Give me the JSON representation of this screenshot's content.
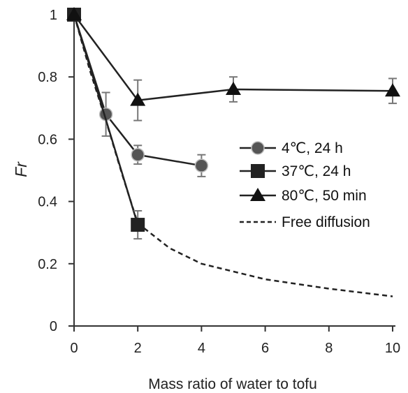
{
  "chart_data": {
    "type": "line",
    "xlabel": "Mass ratio of water to tofu",
    "ylabel": "Fr",
    "xlim": [
      0,
      10
    ],
    "ylim": [
      0,
      1
    ],
    "xticks": [
      0,
      2,
      4,
      6,
      8,
      10
    ],
    "yticks": [
      0,
      0.2,
      0.4,
      0.6,
      0.8,
      1
    ],
    "ytick_labels": [
      "0",
      "0.2",
      "0.4",
      "0.6",
      "0.8",
      "1"
    ],
    "grid": false,
    "legend_position": "right",
    "series": [
      {
        "name": "4℃, 24 h",
        "marker": "circle",
        "marker_color": "#555555",
        "x": [
          0,
          1,
          2,
          4
        ],
        "y": [
          1.0,
          0.68,
          0.55,
          0.515
        ],
        "err": [
          0,
          0.07,
          0.03,
          0.035
        ]
      },
      {
        "name": "37℃, 24 h",
        "marker": "square",
        "marker_color": "#222222",
        "x": [
          0,
          2
        ],
        "y": [
          1.0,
          0.325
        ],
        "err": [
          0,
          0.045
        ]
      },
      {
        "name": "80℃, 50 min",
        "marker": "triangle",
        "marker_color": "#111111",
        "x": [
          0,
          2,
          5,
          10
        ],
        "y": [
          1.0,
          0.725,
          0.76,
          0.755
        ],
        "err": [
          0,
          0.065,
          0.04,
          0.04
        ]
      },
      {
        "name": "Free diffusion",
        "line_style": "dashed",
        "x": [
          0,
          0.5,
          1,
          1.5,
          2,
          3,
          4,
          6,
          8,
          10
        ],
        "y": [
          1.0,
          0.82,
          0.66,
          0.49,
          0.33,
          0.25,
          0.2,
          0.15,
          0.12,
          0.095
        ]
      }
    ]
  }
}
